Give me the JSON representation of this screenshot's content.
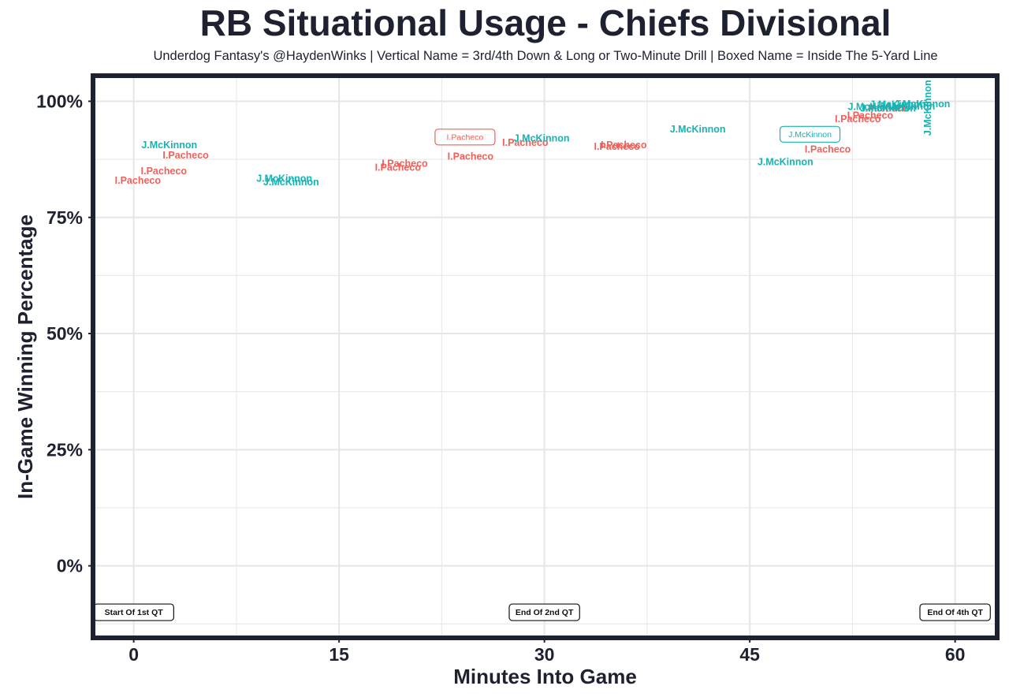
{
  "chart_data": {
    "type": "scatter",
    "title": "RB Situational Usage - Chiefs Divisional",
    "subtitle": "Underdog Fantasy's @HaydenWinks | Vertical Name = 3rd/4th Down & Long or Two-Minute Drill | Boxed Name = Inside The 5-Yard Line",
    "xlabel": "Minutes Into Game",
    "ylabel": "In-Game Winning Percentage",
    "xlim": [
      -2.8,
      62.9
    ],
    "ylim": [
      -0.15,
      1.05
    ],
    "x_ticks": [
      0,
      15,
      30,
      45,
      60
    ],
    "x_tick_labels": [
      "0",
      "15",
      "30",
      "45",
      "60"
    ],
    "y_ticks": [
      0,
      0.25,
      0.5,
      0.75,
      1.0
    ],
    "y_tick_labels": [
      "0%",
      "25%",
      "50%",
      "75%",
      "100%"
    ],
    "grid": true,
    "colors": {
      "I.Pacheco": "#f0605a",
      "J.McKinnon": "#17b3b3",
      "text": "#1e2130",
      "grid": "#e6e6e6",
      "frame": "#1e2130"
    },
    "series": [
      {
        "name": "I.Pacheco",
        "points": [
          {
            "x": 0.3,
            "y": 0.829
          },
          {
            "x": 2.2,
            "y": 0.85
          },
          {
            "x": 3.8,
            "y": 0.884
          },
          {
            "x": 19.3,
            "y": 0.857
          },
          {
            "x": 19.8,
            "y": 0.866
          },
          {
            "x": 24.2,
            "y": 0.923,
            "boxed": true
          },
          {
            "x": 24.6,
            "y": 0.881
          },
          {
            "x": 28.6,
            "y": 0.911
          },
          {
            "x": 35.3,
            "y": 0.902
          },
          {
            "x": 35.8,
            "y": 0.906
          },
          {
            "x": 50.7,
            "y": 0.896
          },
          {
            "x": 52.9,
            "y": 0.962
          },
          {
            "x": 53.8,
            "y": 0.969
          },
          {
            "x": 54.9,
            "y": 0.985
          }
        ]
      },
      {
        "name": "J.McKinnon",
        "points": [
          {
            "x": 2.6,
            "y": 0.906
          },
          {
            "x": 11.0,
            "y": 0.834
          },
          {
            "x": 11.5,
            "y": 0.826
          },
          {
            "x": 29.8,
            "y": 0.92
          },
          {
            "x": 41.2,
            "y": 0.94
          },
          {
            "x": 47.6,
            "y": 0.869
          },
          {
            "x": 49.4,
            "y": 0.929,
            "boxed": true
          },
          {
            "x": 54.2,
            "y": 0.988
          },
          {
            "x": 55.1,
            "y": 0.985
          },
          {
            "x": 55.8,
            "y": 0.993
          },
          {
            "x": 56.5,
            "y": 0.989
          },
          {
            "x": 57.6,
            "y": 0.994
          },
          {
            "x": 58.0,
            "y": 0.986,
            "vertical": true
          }
        ]
      }
    ],
    "annotations": [
      {
        "x": 0,
        "text": "Start Of 1st QT"
      },
      {
        "x": 30,
        "text": "End Of 2nd QT"
      },
      {
        "x": 60,
        "text": "End Of 4th QT"
      }
    ]
  }
}
